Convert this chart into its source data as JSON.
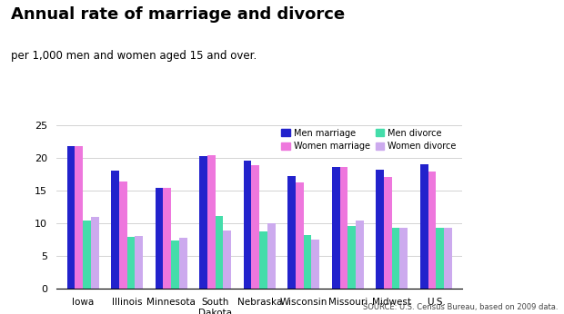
{
  "title": "Annual rate of marriage and divorce",
  "subtitle": "per 1,000 men and women aged 15 and over.",
  "source": "SOURCE: U.S. Census Bureau, based on 2009 data.",
  "categories": [
    "Iowa",
    "Illinois",
    "Minnesota",
    "South\nDakota",
    "Nebraska",
    "Wisconsin",
    "Missouri",
    "Midwest",
    "U.S."
  ],
  "men_marriage": [
    21.8,
    18.1,
    15.4,
    20.3,
    19.7,
    17.3,
    18.7,
    18.3,
    19.1
  ],
  "women_marriage": [
    21.8,
    16.5,
    15.4,
    20.5,
    19.0,
    16.3,
    18.7,
    17.2,
    17.9
  ],
  "men_divorce": [
    10.4,
    8.0,
    7.4,
    11.1,
    8.8,
    8.3,
    9.6,
    9.3,
    9.3
  ],
  "women_divorce": [
    11.0,
    8.1,
    7.8,
    8.9,
    10.0,
    7.5,
    10.5,
    9.4,
    9.4
  ],
  "colors": {
    "men_marriage": "#2222cc",
    "women_marriage": "#ee77dd",
    "men_divorce": "#44ddaa",
    "women_divorce": "#ccaaee"
  },
  "ylim": [
    0,
    25
  ],
  "yticks": [
    0,
    5,
    10,
    15,
    20,
    25
  ],
  "background_color": "#ffffff",
  "legend_labels": [
    "Men marriage",
    "Women marriage",
    "Men divorce",
    "Women divorce"
  ]
}
